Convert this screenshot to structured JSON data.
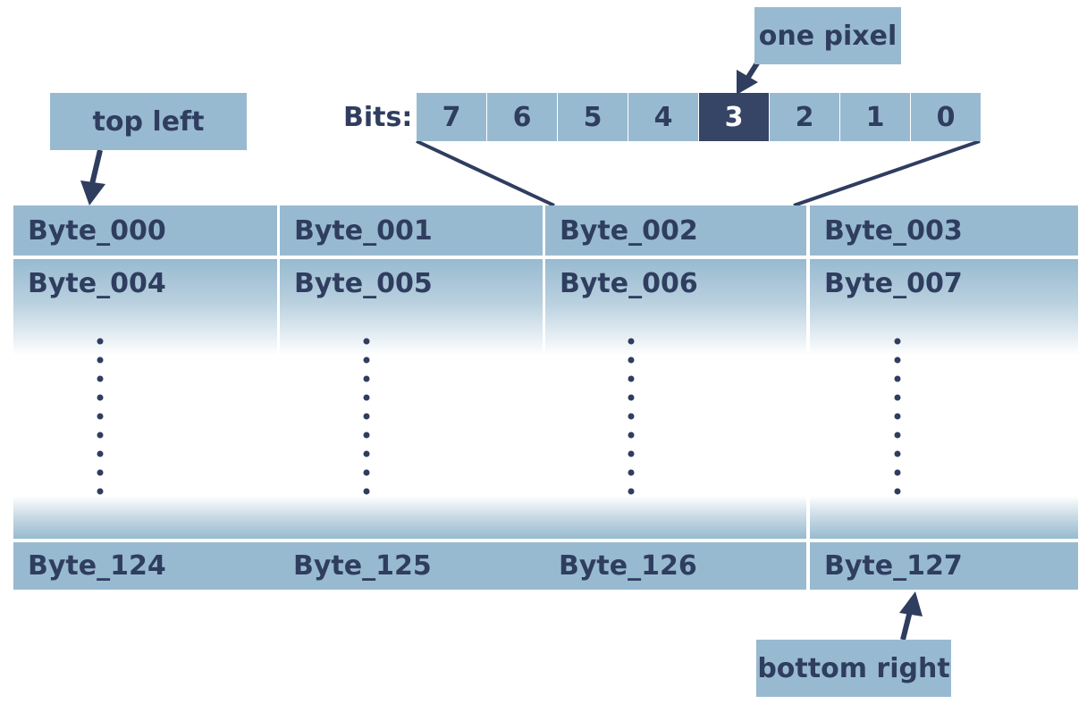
{
  "labels": {
    "top_left": "top left",
    "one_pixel": "one pixel",
    "bottom_right": "bottom right",
    "bits": "Bits:"
  },
  "bits": [
    "7",
    "6",
    "5",
    "4",
    "3",
    "2",
    "1",
    "0"
  ],
  "selected_bit": "3",
  "bytes": {
    "row1": [
      "Byte_000",
      "Byte_001",
      "Byte_002",
      "Byte_003"
    ],
    "row2": [
      "Byte_004",
      "Byte_005",
      "Byte_006",
      "Byte_007"
    ],
    "last_row": [
      "Byte_124",
      "Byte_125",
      "Byte_126",
      "Byte_127"
    ]
  },
  "colors": {
    "cell": "#98bad0",
    "selected": "#364466",
    "ink": "#2f3d5f"
  }
}
